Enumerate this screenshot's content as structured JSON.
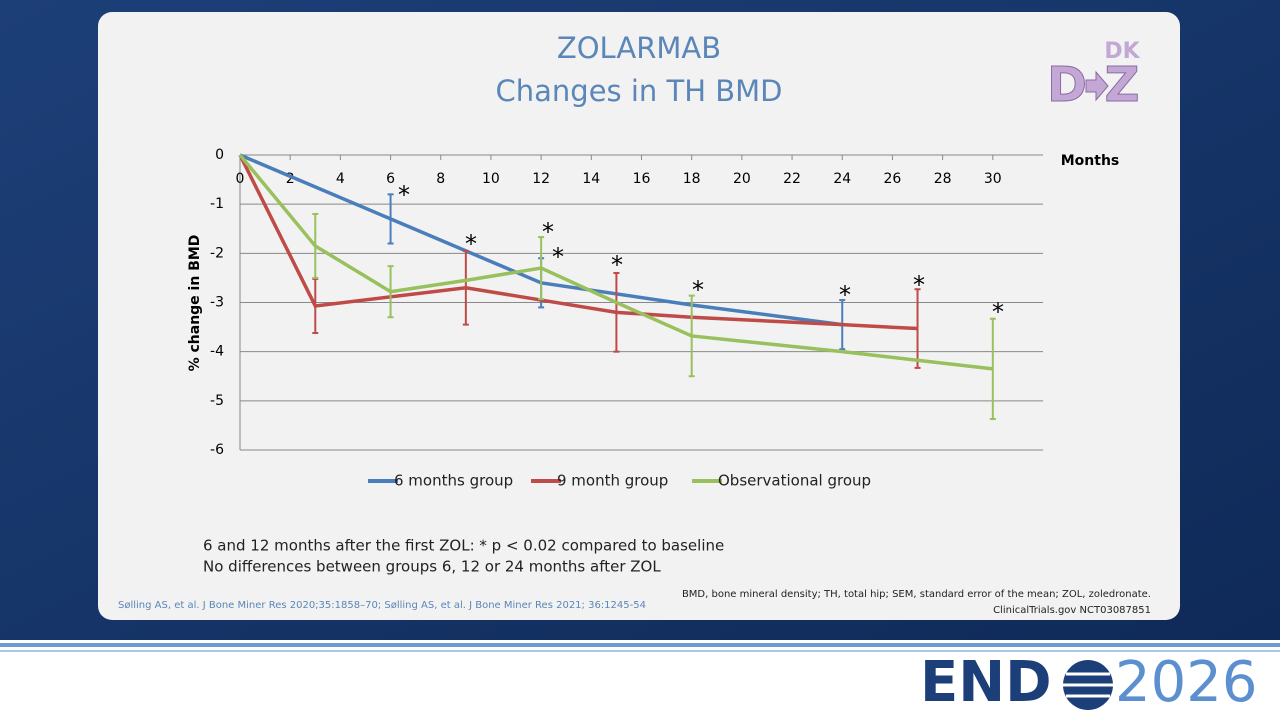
{
  "chart_data": {
    "type": "line",
    "title": "ZOLARMAB",
    "subtitle": "Changes in TH BMD",
    "x_label": "Months",
    "y_label": "% change in BMD",
    "xlim": [
      0,
      32
    ],
    "xticks": [
      0,
      2,
      4,
      6,
      8,
      10,
      12,
      14,
      16,
      18,
      20,
      22,
      24,
      26,
      28,
      30
    ],
    "ylim": [
      -6,
      0
    ],
    "yticks": [
      0,
      -1,
      -2,
      -3,
      -4,
      -5,
      -6
    ],
    "grid": true,
    "legend": "bottom",
    "series": [
      {
        "name": "6 months group",
        "color": "#4a7ebb",
        "x": [
          0,
          6,
          12,
          18,
          24
        ],
        "values": [
          0,
          -1.3,
          -2.6,
          -3.05,
          -3.45
        ],
        "errors": [
          null,
          0.5,
          0.5,
          null,
          0.5
        ]
      },
      {
        "name": "9 month group",
        "color": "#be4b48",
        "x": [
          0,
          3,
          9,
          12,
          15,
          18,
          24,
          27
        ],
        "values": [
          0,
          -3.07,
          -2.7,
          -2.95,
          -3.2,
          -3.3,
          -3.45,
          -3.53
        ],
        "errors": [
          null,
          0.55,
          0.75,
          null,
          0.8,
          null,
          null,
          0.8
        ]
      },
      {
        "name": "Observational group",
        "color": "#98c05c",
        "x": [
          0,
          3,
          6,
          9,
          12,
          15,
          18,
          24,
          30
        ],
        "values": [
          0,
          -1.85,
          -2.78,
          -2.55,
          -2.3,
          -3.0,
          -3.68,
          -4.0,
          -4.35
        ],
        "errors": [
          null,
          0.65,
          0.52,
          null,
          0.63,
          null,
          0.82,
          null,
          1.02
        ]
      }
    ],
    "annotations": [
      "*",
      "*",
      "*",
      "*",
      "*",
      "*",
      "*",
      "*",
      "*"
    ]
  },
  "logo": {
    "top": "DK",
    "left": "D",
    "right": "Z"
  },
  "notes": [
    "6 and 12 months after the first ZOL:  * p < 0.02 compared to baseline",
    "No differences between groups 6, 12 or 24 months after ZOL"
  ],
  "citation": "Sølling AS, et al. J Bone Miner Res 2020;35:1858–70; Sølling AS, et al. J Bone Miner Res 2021; 36:1245-54",
  "footnote": [
    "BMD, bone mineral density; TH, total hip; SEM, standard error of the mean; ZOL, zoledronate.",
    "ClinicalTrials.gov NCT03087851"
  ],
  "banner": {
    "left": "END",
    "right": "2026"
  }
}
